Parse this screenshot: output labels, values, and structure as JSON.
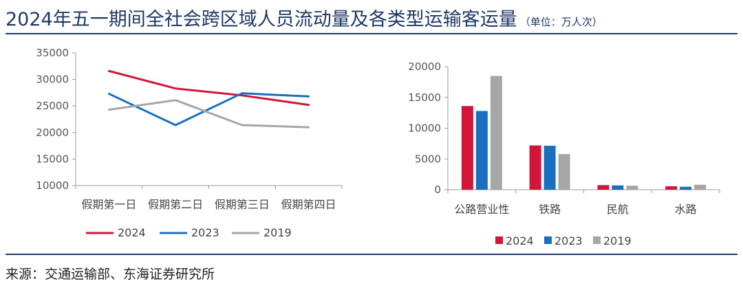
{
  "header": {
    "title": "2024年五一期间全社会跨区域人员流动量及各类型运输客运量",
    "unit": "（单位：万人次）"
  },
  "footer": {
    "source": "来源：交通运输部、东海证券研究所"
  },
  "colors": {
    "2024": "#d2163a",
    "2023": "#1a6fbf",
    "2019": "#a6a6a6",
    "accent": "#1f3864"
  },
  "chart_data": [
    {
      "type": "line",
      "title": "",
      "categories": [
        "假期第一日",
        "假期第二日",
        "假期第三日",
        "假期第四日"
      ],
      "ylim": [
        10000,
        35000
      ],
      "yticks": [
        "35000",
        "30000",
        "25000",
        "20000",
        "15000",
        "10000"
      ],
      "grid": false,
      "legend": "bottom",
      "series": [
        {
          "name": "2024",
          "values": [
            31600,
            28300,
            27000,
            25200
          ]
        },
        {
          "name": "2023",
          "values": [
            27300,
            21400,
            27400,
            26800
          ]
        },
        {
          "name": "2019",
          "values": [
            24300,
            26100,
            21400,
            21000
          ]
        }
      ]
    },
    {
      "type": "bar",
      "title": "",
      "categories": [
        "公路营业性",
        "铁路",
        "民航",
        "水路"
      ],
      "ylim": [
        0,
        20000
      ],
      "yticks": [
        "20000",
        "15000",
        "10000",
        "5000",
        "0"
      ],
      "grid": false,
      "legend": "bottom",
      "series": [
        {
          "name": "2024",
          "values": [
            13600,
            7200,
            750,
            560
          ]
        },
        {
          "name": "2023",
          "values": [
            12800,
            7150,
            700,
            480
          ]
        },
        {
          "name": "2019",
          "values": [
            18500,
            5800,
            650,
            800
          ]
        }
      ]
    }
  ]
}
